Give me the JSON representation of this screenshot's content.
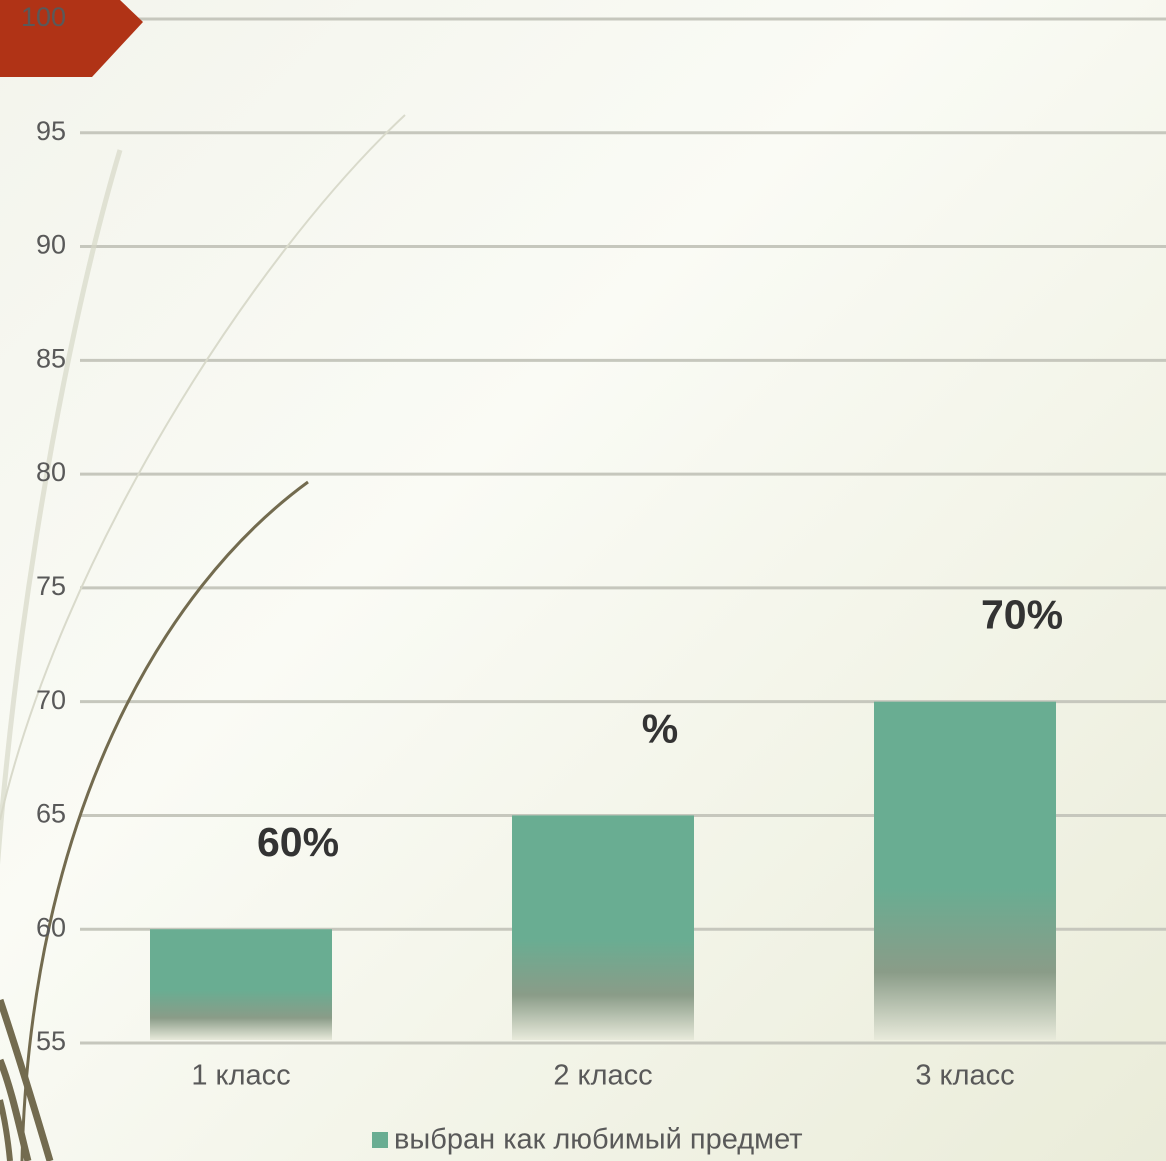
{
  "chart_data": {
    "type": "bar",
    "categories": [
      "1 класс",
      "2 класс",
      "3 класс"
    ],
    "series": [
      {
        "name": "выбран как любимый предмет",
        "color": "#69ad92",
        "values": [
          60,
          65,
          70
        ],
        "value_labels": [
          "60%",
          "%",
          "70%"
        ]
      }
    ],
    "ylim": [
      55,
      100
    ],
    "yticks": [
      55,
      60,
      65,
      70,
      75,
      80,
      85,
      90,
      95,
      100
    ],
    "grid": true,
    "legend": "bottom"
  }
}
